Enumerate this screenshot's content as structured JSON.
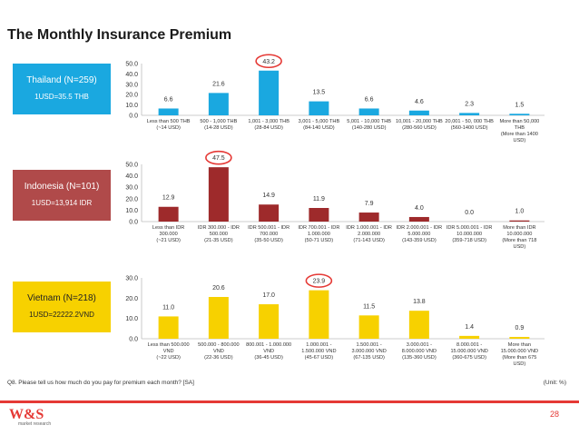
{
  "page": {
    "title": "The Monthly Insurance Premium",
    "question": "Q8. Please tell us how much do you pay for premium each month? [SA]",
    "unit": "(Unit: %)",
    "page_number": "28",
    "logo_mark": "W&S",
    "logo_sub": "market research"
  },
  "colors": {
    "accent": "#e53935",
    "thailand": "#1aa8e0",
    "indonesia": "#9e2a2b",
    "vietnam": "#f7d100"
  },
  "chart_data": [
    {
      "type": "bar",
      "panel_name": "Thailand (N=259)",
      "panel_rate": "1USD=35.5 THB",
      "yticks": [
        "50.0",
        "40.0",
        "30.0",
        "20.0",
        "10.0",
        "0.0"
      ],
      "ylim": [
        0,
        50
      ],
      "values": [
        6.6,
        21.6,
        43.2,
        13.5,
        6.6,
        4.6,
        2.3,
        1.5
      ],
      "value_labels": [
        "6.6",
        "21.6",
        "43.2",
        "13.5",
        "6.6",
        "4.6",
        "2.3",
        "1.5"
      ],
      "highlight_index": 2,
      "categories": [
        [
          "Less than 500 THB",
          "(~14 USD)"
        ],
        [
          "500 - 1,000 THB",
          "(14-28 USD)"
        ],
        [
          "1,001 - 3,000 THB",
          "(28-84 USD)"
        ],
        [
          "3,001 - 5,000 THB",
          "(84-140 USD)"
        ],
        [
          "5,001 - 10,000 THB",
          "(140-280 USD)"
        ],
        [
          "10,001 - 20,000 THB",
          "(280-560 USD)"
        ],
        [
          "20,001 - 50, 000 THB",
          "(560-1400 USD)"
        ],
        [
          "More than 50,000",
          "THB",
          "(More than 1400",
          "USD)"
        ]
      ]
    },
    {
      "type": "bar",
      "panel_name": "Indonesia (N=101)",
      "panel_rate": "1USD=13,914 IDR",
      "yticks": [
        "50.0",
        "40.0",
        "30.0",
        "20.0",
        "10.0",
        "0.0"
      ],
      "ylim": [
        0,
        50
      ],
      "values": [
        12.9,
        47.5,
        14.9,
        11.9,
        7.9,
        4.0,
        0.0,
        1.0
      ],
      "value_labels": [
        "12.9",
        "47.5",
        "14.9",
        "11.9",
        "7.9",
        "4.0",
        "0.0",
        "1.0"
      ],
      "highlight_index": 1,
      "categories": [
        [
          "Less than IDR",
          "300.000",
          "(~21 USD)"
        ],
        [
          "IDR 300.000 - IDR",
          "500.000",
          "(21-35 USD)"
        ],
        [
          "IDR 500.001 - IDR",
          "700.000",
          "(35-50 USD)"
        ],
        [
          "IDR 700.001 - IDR",
          "1.000.000",
          "(50-71 USD)"
        ],
        [
          "IDR 1.000.001 - IDR",
          "2.000.000",
          "(71-143 USD)"
        ],
        [
          "IDR 2.000.001 - IDR",
          "5.000.000",
          "(143-359 USD)"
        ],
        [
          "IDR 5.000.001 - IDR",
          "10.000.000",
          "(359-718 USD)"
        ],
        [
          "More than IDR",
          "10.000.000",
          "(More than 718",
          "USD)"
        ]
      ]
    },
    {
      "type": "bar",
      "panel_name": "Vietnam (N=218)",
      "panel_rate": "1USD=22222.2VND",
      "yticks": [
        "30.0",
        "20.0",
        "10.0",
        "0.0"
      ],
      "ylim": [
        0,
        30
      ],
      "values": [
        11.0,
        20.6,
        17.0,
        23.9,
        11.5,
        13.8,
        1.4,
        0.9
      ],
      "value_labels": [
        "11.0",
        "20.6",
        "17.0",
        "23.9",
        "11.5",
        "13.8",
        "1.4",
        "0.9"
      ],
      "highlight_index": 3,
      "categories": [
        [
          "Less than 500.000",
          "VND",
          "(~22 USD)"
        ],
        [
          "500.000 - 800.000",
          "VND",
          "(22-36 USD)"
        ],
        [
          "800.001 - 1.000.000",
          "VND",
          "(36-45 USD)"
        ],
        [
          "1.000.001 -",
          "1.500.000 VND",
          "(45-67 USD)"
        ],
        [
          "1.500.001 -",
          "3.000.000 VND",
          "(67-135 USD)"
        ],
        [
          "3.000.001 -",
          "8.000.000 VND",
          "(135-360 USD)"
        ],
        [
          "8.000.001 -",
          "15.000.000 VND",
          "(360-675 USD)"
        ],
        [
          "More than",
          "15.000.000 VND",
          "(More than 675",
          "USD)"
        ]
      ]
    }
  ]
}
